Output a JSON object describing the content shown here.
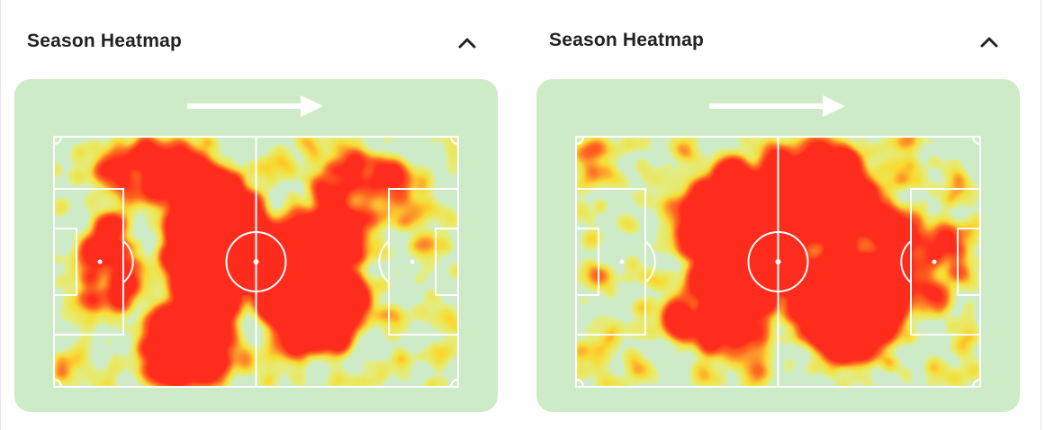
{
  "cards": [
    {
      "title": "Season Heatmap",
      "collapse_icon": "chevron-up-icon",
      "direction_icon": "arrow-right-icon"
    },
    {
      "title": "Season Heatmap",
      "collapse_icon": "chevron-up-icon",
      "direction_icon": "arrow-right-icon"
    }
  ],
  "colors": {
    "pitch_background": "#ceebc7",
    "pitch_lines": "#ffffff",
    "heat_low": "#f5f04a",
    "heat_mid": "#ff9a1f",
    "heat_high": "#ff2a1a"
  }
}
